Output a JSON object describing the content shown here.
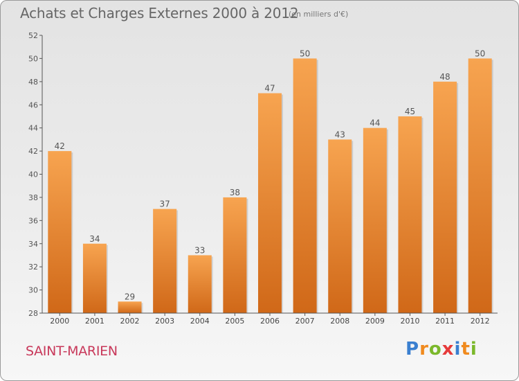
{
  "header": {
    "title": "Achats et Charges Externes 2000 à 2012",
    "unit": "(en milliers d'€)"
  },
  "footer": {
    "commune": "SAINT-MARIEN",
    "logo": {
      "letters": [
        "P",
        "r",
        "o",
        "x",
        "i",
        "t",
        "i"
      ],
      "colors": [
        "#3a7fd0",
        "#f08a1e",
        "#7bb82b",
        "#e63a3a",
        "#3a7fd0",
        "#f08a1e",
        "#7bb82b"
      ]
    }
  },
  "chart_data": {
    "type": "bar",
    "title": "Achats et Charges Externes 2000 à 2012",
    "subtitle": "(en milliers d'€)",
    "categories": [
      "2000",
      "2001",
      "2002",
      "2003",
      "2004",
      "2005",
      "2006",
      "2007",
      "2008",
      "2009",
      "2010",
      "2011",
      "2012"
    ],
    "values": [
      42,
      34,
      29,
      37,
      33,
      38,
      47,
      50,
      43,
      44,
      45,
      48,
      50
    ],
    "ylim": [
      28,
      52
    ],
    "yticks": [
      28,
      30,
      32,
      34,
      36,
      38,
      40,
      42,
      44,
      46,
      48,
      50,
      52
    ],
    "grid": false,
    "colors": {
      "bar_top": "#f7a450",
      "bar_bottom": "#d06818",
      "axis": "#555555"
    }
  }
}
